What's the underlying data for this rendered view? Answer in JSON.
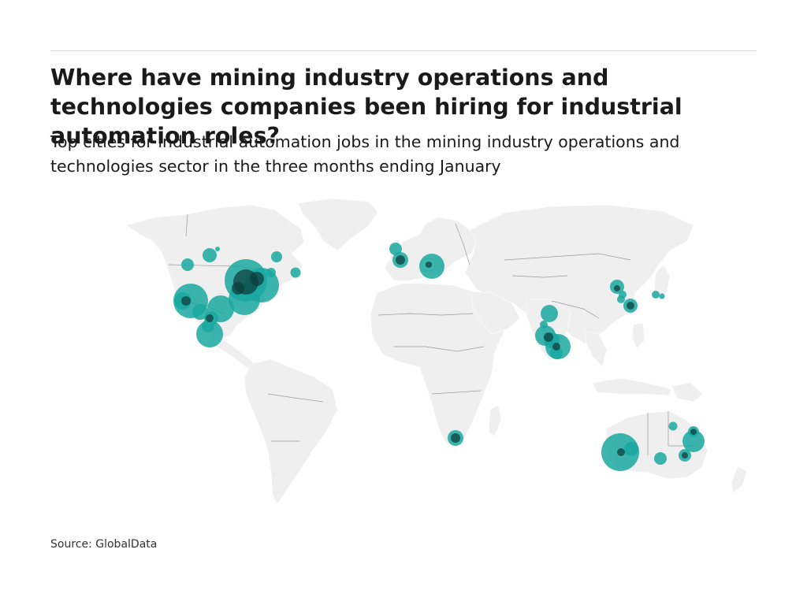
{
  "header": {
    "title": "Where have mining industry operations and technologies companies been hiring for industrial automation roles?",
    "subtitle": "Top cities for industrial automation jobs in the mining industry operations and technologies sector in the three months ending January"
  },
  "footer": {
    "source": "Source: GlobalData"
  },
  "map": {
    "land_color": "#efefef",
    "border_color": "#9a9a9a",
    "bubble_color": "#1aa8a0"
  }
}
